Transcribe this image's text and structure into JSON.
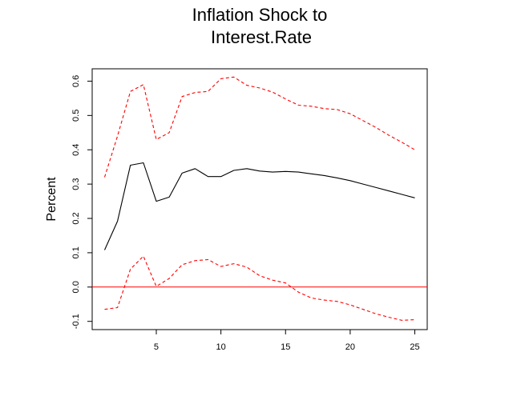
{
  "chart_data": {
    "type": "line",
    "title_lines": [
      "Inflation Shock to",
      "Interest.Rate"
    ],
    "xlabel": "",
    "ylabel": "Percent",
    "xlim": [
      0.04,
      25.96
    ],
    "ylim": [
      -0.124,
      0.636
    ],
    "x_ticks": [
      5,
      10,
      15,
      20,
      25
    ],
    "x_tick_labels": [
      "5",
      "10",
      "15",
      "20",
      "25"
    ],
    "y_ticks": [
      -0.1,
      0.0,
      0.1,
      0.2,
      0.3,
      0.4,
      0.5,
      0.6
    ],
    "y_tick_labels": [
      "-0.1",
      "0.0",
      "0.1",
      "0.2",
      "0.3",
      "0.4",
      "0.5",
      "0.6"
    ],
    "grid": false,
    "x": [
      1,
      2,
      3,
      4,
      5,
      6,
      7,
      8,
      9,
      10,
      11,
      12,
      13,
      14,
      15,
      16,
      17,
      18,
      19,
      20,
      21,
      22,
      23,
      24,
      25
    ],
    "series": [
      {
        "role": "upper-band",
        "color": "#ff0000",
        "dash": "dashed",
        "values": [
          0.32,
          0.44,
          0.57,
          0.59,
          0.43,
          0.45,
          0.555,
          0.567,
          0.57,
          0.607,
          0.612,
          0.588,
          0.58,
          0.568,
          0.548,
          0.53,
          0.527,
          0.52,
          0.517,
          0.505,
          0.485,
          0.465,
          0.442,
          0.422,
          0.4
        ]
      },
      {
        "role": "response",
        "color": "#000000",
        "dash": "solid",
        "values": [
          0.108,
          0.192,
          0.355,
          0.362,
          0.25,
          0.262,
          0.332,
          0.345,
          0.322,
          0.322,
          0.34,
          0.345,
          0.338,
          0.335,
          0.337,
          0.335,
          0.33,
          0.325,
          0.318,
          0.31,
          0.3,
          0.29,
          0.28,
          0.27,
          0.26
        ]
      },
      {
        "role": "lower-band",
        "color": "#ff0000",
        "dash": "dashed",
        "values": [
          -0.065,
          -0.06,
          0.052,
          0.09,
          0.002,
          0.025,
          0.065,
          0.077,
          0.08,
          0.06,
          0.068,
          0.058,
          0.033,
          0.02,
          0.012,
          -0.015,
          -0.032,
          -0.038,
          -0.042,
          -0.052,
          -0.065,
          -0.078,
          -0.088,
          -0.097,
          -0.095
        ]
      }
    ],
    "reference_line": {
      "y": 0.0,
      "color": "#ff0000"
    }
  }
}
